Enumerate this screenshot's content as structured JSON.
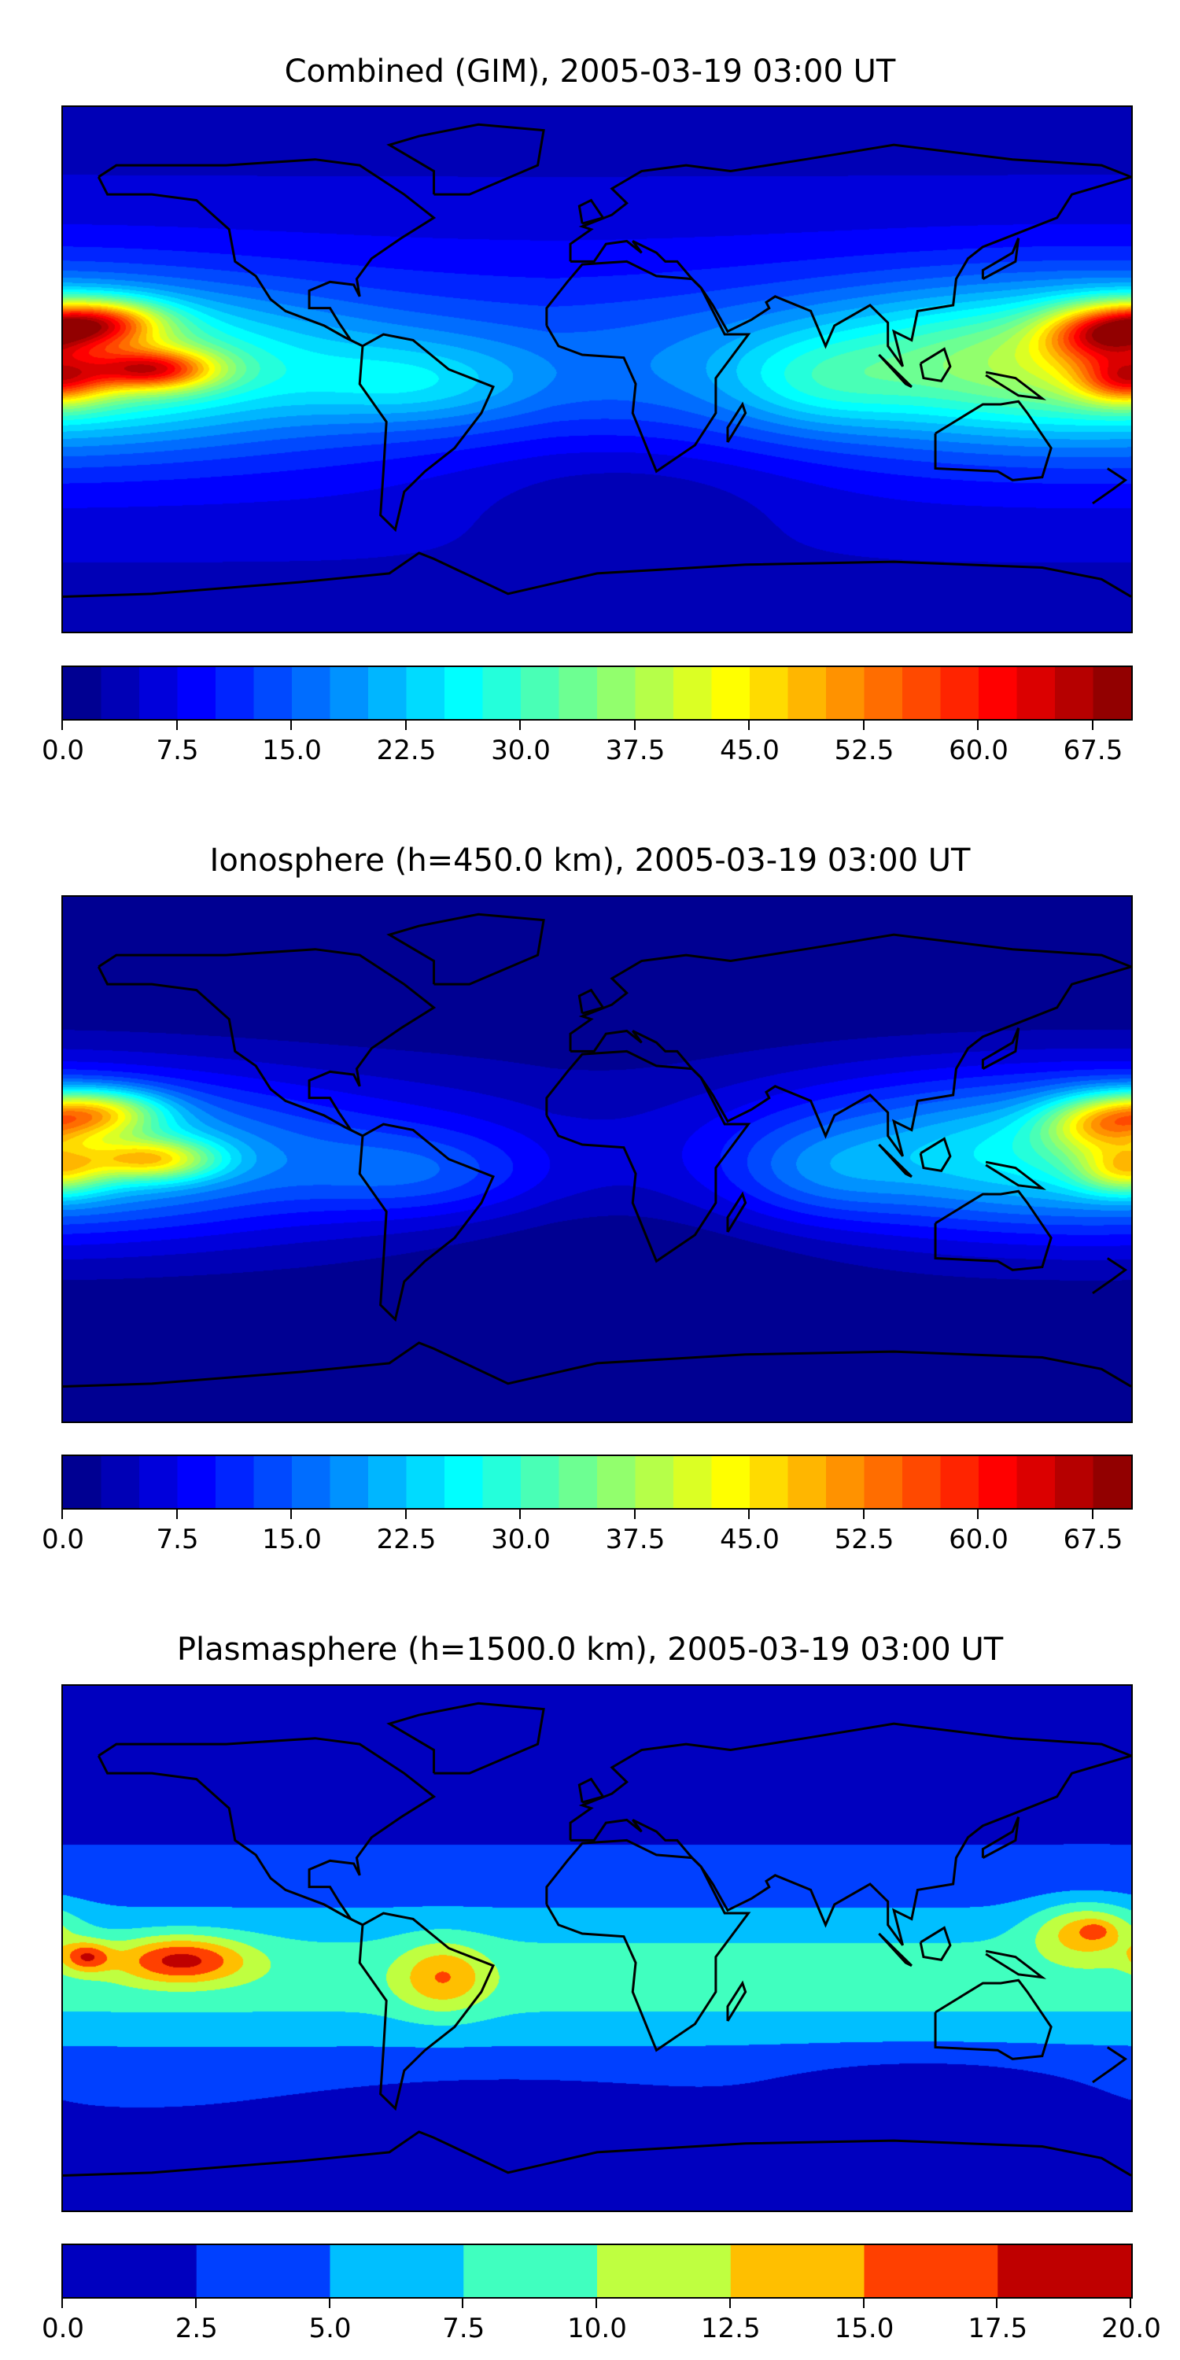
{
  "chart_data": [
    {
      "type": "heatmap",
      "title": "Combined (GIM), 2005-03-19 03:00 UT",
      "field": "combined",
      "colorbar": {
        "min": 0,
        "max": 70,
        "step": 2.5,
        "colormap": "jet",
        "tick_labels": [
          "0.0",
          "7.5",
          "15.0",
          "22.5",
          "30.0",
          "37.5",
          "45.0",
          "52.5",
          "60.0",
          "67.5"
        ],
        "tick_values": [
          0,
          7.5,
          15,
          22.5,
          30,
          37.5,
          45,
          52.5,
          60,
          67.5
        ]
      },
      "xlim": [
        -180,
        180
      ],
      "ylim": [
        -90,
        90
      ]
    },
    {
      "type": "heatmap",
      "title": "Ionosphere  (h=450.0 km), 2005-03-19 03:00 UT",
      "field": "ionosphere",
      "colorbar": {
        "min": 0,
        "max": 70,
        "step": 2.5,
        "colormap": "jet",
        "tick_labels": [
          "0.0",
          "7.5",
          "15.0",
          "22.5",
          "30.0",
          "37.5",
          "45.0",
          "52.5",
          "60.0",
          "67.5"
        ],
        "tick_values": [
          0,
          7.5,
          15,
          22.5,
          30,
          37.5,
          45,
          52.5,
          60,
          67.5
        ]
      },
      "xlim": [
        -180,
        180
      ],
      "ylim": [
        -90,
        90
      ]
    },
    {
      "type": "heatmap",
      "title": "Plasmasphere (h=1500.0 km), 2005-03-19 03:00 UT",
      "field": "plasmasphere",
      "colorbar": {
        "min": 0,
        "max": 20,
        "step": 2.5,
        "colormap": "jet",
        "tick_labels": [
          "0.0",
          "2.5",
          "5.0",
          "7.5",
          "10.0",
          "12.5",
          "15.0",
          "17.5",
          "20.0"
        ],
        "tick_values": [
          0,
          2.5,
          5,
          7.5,
          10,
          12.5,
          15,
          17.5,
          20
        ]
      },
      "xlim": [
        -180,
        180
      ],
      "ylim": [
        -90,
        90
      ]
    }
  ],
  "coastline_color": "#000000"
}
